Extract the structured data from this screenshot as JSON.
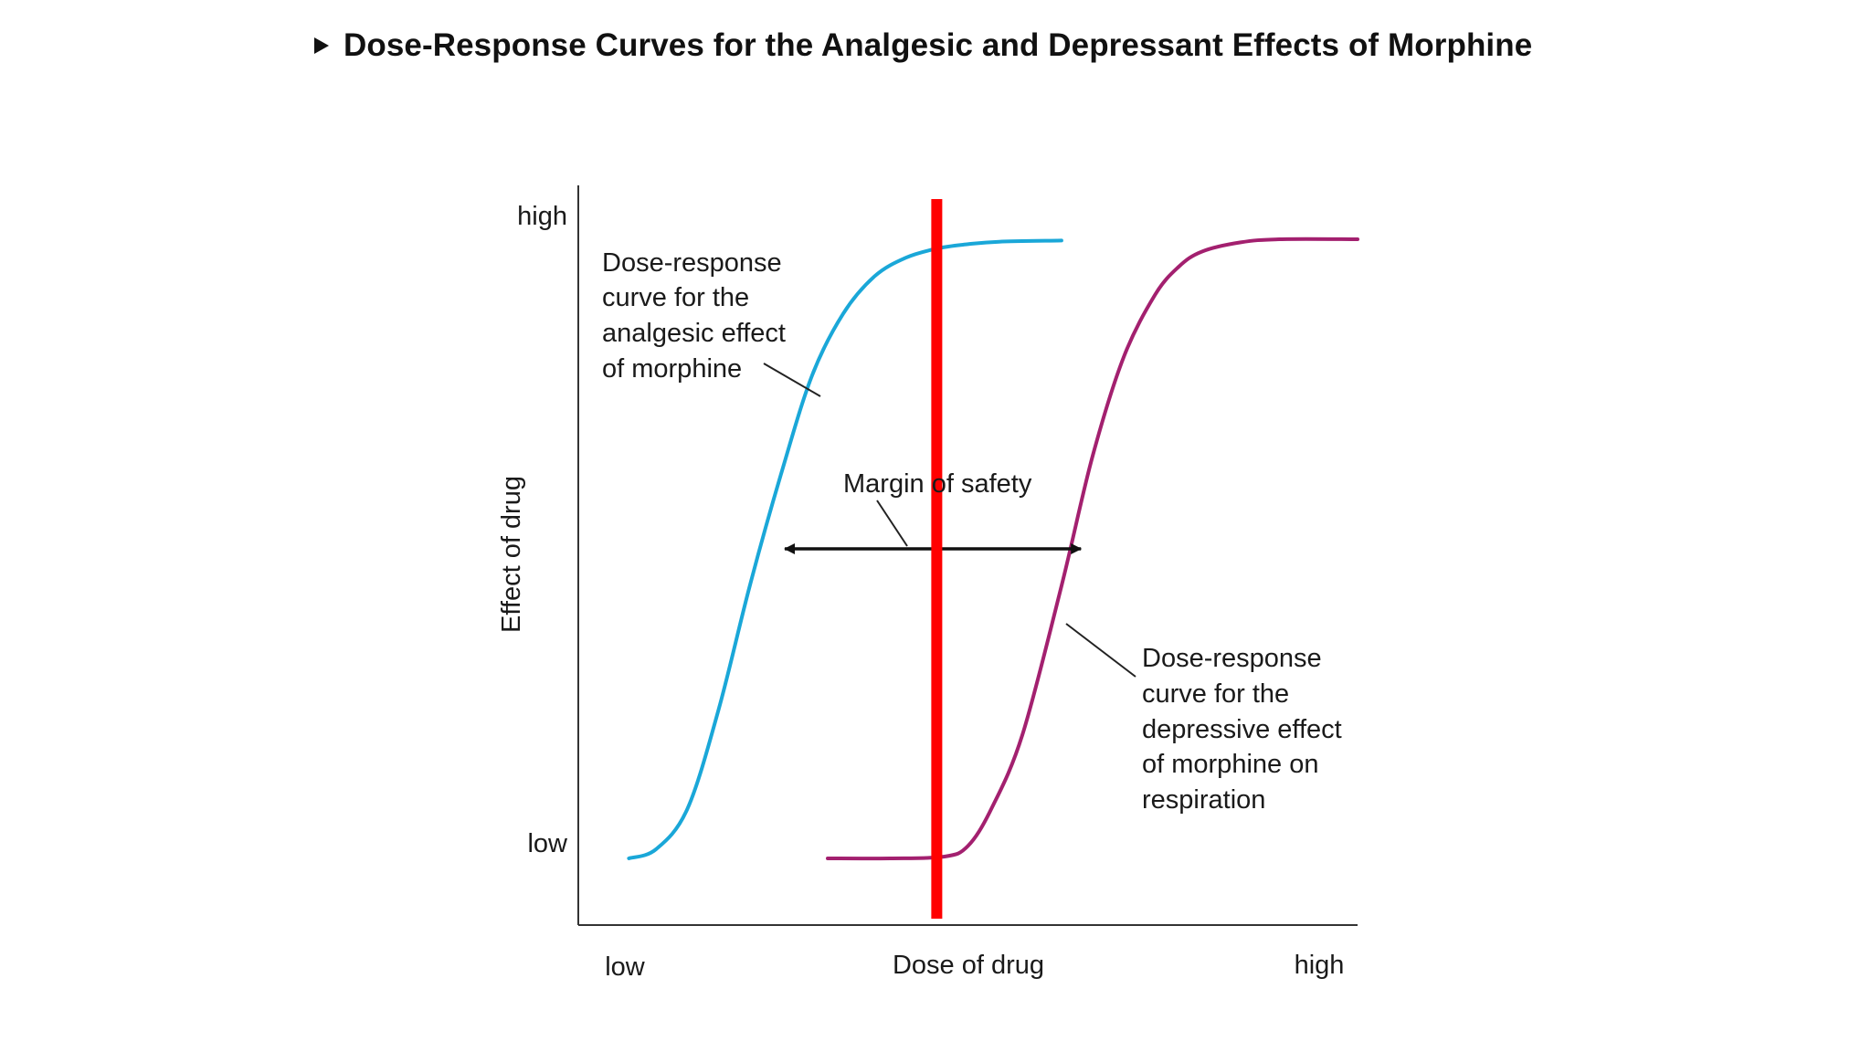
{
  "title": "Dose-Response Curves for the Analgesic and Depressant Effects of Morphine",
  "chart_data": {
    "type": "line",
    "title": "Dose-Response Curves for the Analgesic and Depressant Effects of Morphine",
    "xlabel": "Dose of drug",
    "ylabel": "Effect of drug",
    "x_tick_labels": [
      "low",
      "high"
    ],
    "y_tick_labels": [
      "low",
      "high"
    ],
    "xlim": [
      0,
      100
    ],
    "ylim": [
      0,
      100
    ],
    "grid": false,
    "legend": "none",
    "series": [
      {
        "name": "",
        "color": "#1aa7d8",
        "x": [
          6.5,
          10,
          14,
          18,
          22,
          26,
          30,
          34,
          38,
          42,
          46,
          50,
          54,
          62
        ],
        "y": [
          0,
          1.5,
          8,
          24,
          44,
          62,
          78,
          88,
          94,
          97,
          98.5,
          99.2,
          99.6,
          99.8
        ]
      },
      {
        "name": "",
        "color": "#a3206f",
        "x": [
          32,
          40,
          47,
          50,
          53,
          57,
          62,
          66,
          70,
          74,
          77,
          80,
          85,
          90,
          100
        ],
        "y": [
          0,
          0,
          0.3,
          2,
          8,
          20,
          44,
          65,
          81,
          91,
          95.5,
          98,
          99.5,
          100,
          100
        ]
      }
    ],
    "annotations": [
      {
        "text": [
          "Dose-response",
          "curve for the",
          "analgesic effect",
          "of morphine"
        ]
      },
      {
        "text": [
          "Dose-response",
          "curve for the",
          "depressive effect",
          "of morphine on",
          "respiration"
        ]
      },
      {
        "text": [
          "Margin of safety"
        ]
      }
    ],
    "margin_of_safety": {
      "from_x": 26.5,
      "to_x": 64.5,
      "y": 50
    },
    "marker_line": {
      "x": 46,
      "color": "#ff0000"
    }
  }
}
